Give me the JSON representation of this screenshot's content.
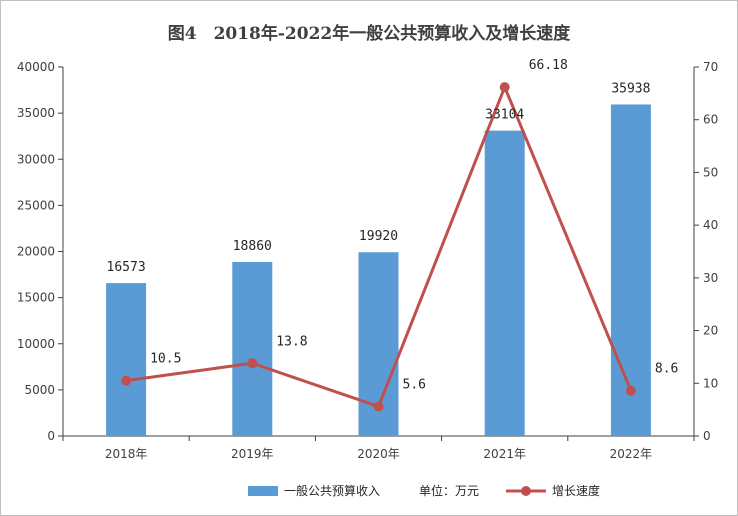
{
  "chart_data": {
    "type": "bar",
    "title": "图4　2018年-2022年一般公共预算收入及增长速度",
    "categories": [
      "2018年",
      "2019年",
      "2020年",
      "2021年",
      "2022年"
    ],
    "series": [
      {
        "name": "一般公共预算收入",
        "type": "bar",
        "axis": "left",
        "color": "#5b9bd5",
        "values": [
          16573,
          18860,
          19920,
          33104,
          35938
        ],
        "labels": [
          "16573",
          "18860",
          "19920",
          "33104",
          "35938"
        ]
      },
      {
        "name": "增长速度",
        "type": "line",
        "axis": "right",
        "color": "#c0504d",
        "values": [
          10.5,
          13.8,
          5.6,
          66.18,
          8.6
        ],
        "labels": [
          "10.5",
          "13.8",
          "5.6",
          "66.18",
          "8.6"
        ]
      }
    ],
    "y_left": {
      "min": 0,
      "max": 40000,
      "step": 5000,
      "tick_labels": [
        "0",
        "5000",
        "10000",
        "15000",
        "20000",
        "25000",
        "30000",
        "35000",
        "40000"
      ]
    },
    "y_right": {
      "min": 0,
      "max": 70,
      "step": 10,
      "tick_labels": [
        "0",
        "10",
        "20",
        "30",
        "40",
        "50",
        "60",
        "70"
      ]
    },
    "grid": false,
    "legend_position": "bottom",
    "unit_note": "单位：万元"
  }
}
